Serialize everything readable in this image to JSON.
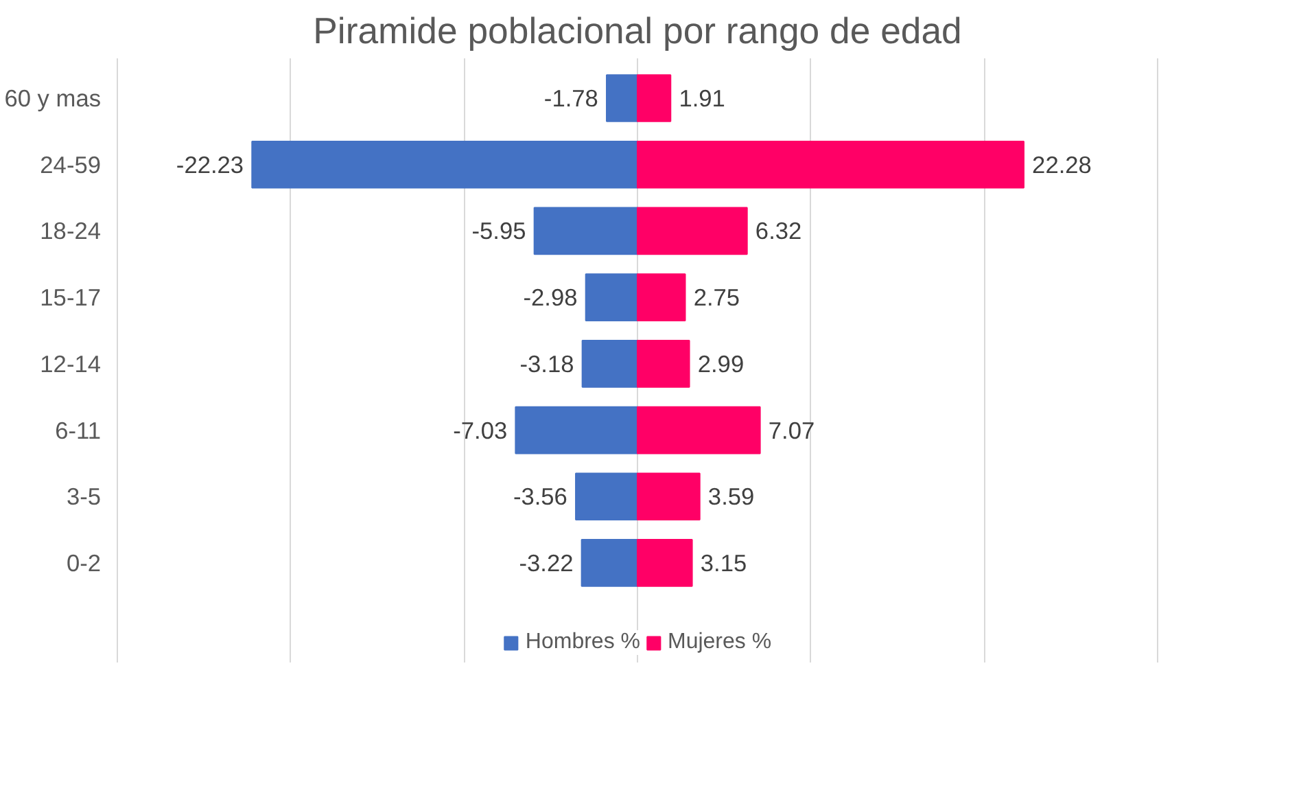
{
  "chart_data": {
    "type": "bar",
    "orientation": "horizontal",
    "title": "Piramide poblacional por rango de edad",
    "categories": [
      "60 y mas",
      "24-59",
      "18-24",
      "15-17",
      "12-14",
      "6-11",
      "3-5",
      "0-2"
    ],
    "series": [
      {
        "name": "Hombres %",
        "color": "#4472c4",
        "values": [
          -1.78,
          -22.23,
          -5.95,
          -2.98,
          -3.18,
          -7.03,
          -3.56,
          -3.22
        ]
      },
      {
        "name": "Mujeres %",
        "color": "#ff0066",
        "values": [
          1.91,
          22.28,
          6.32,
          2.75,
          2.99,
          7.07,
          3.59,
          3.15
        ]
      }
    ],
    "stacked": true,
    "tick_labels": "y",
    "grid": "x",
    "legend": "bottom",
    "data_labels": true
  }
}
